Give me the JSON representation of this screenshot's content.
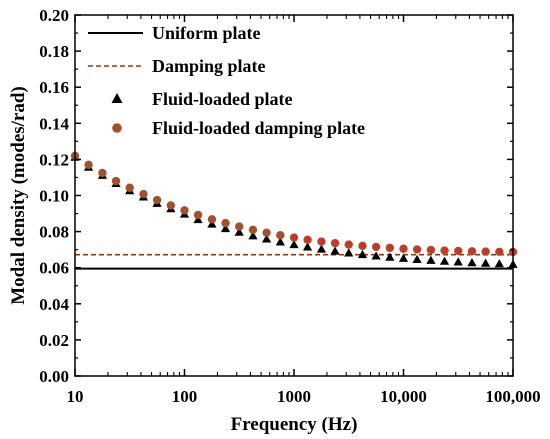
{
  "chart_data": {
    "type": "scatter",
    "xscale": "log",
    "xlim": [
      10,
      100000
    ],
    "ylim": [
      0.0,
      0.2
    ],
    "xlabel": "Frequency (Hz)",
    "ylabel": "Modal density (modes/rad)",
    "grid": false,
    "legend_position": "top-left",
    "x_ticks": [
      10,
      100,
      1000,
      10000,
      100000
    ],
    "x_tick_labels": [
      "10",
      "100",
      "1000",
      "10,000",
      "100,000"
    ],
    "y_ticks": [
      0.0,
      0.02,
      0.04,
      0.06,
      0.08,
      0.1,
      0.12,
      0.14,
      0.16,
      0.18,
      0.2
    ],
    "y_tick_labels": [
      "0.00",
      "0.02",
      "0.04",
      "0.06",
      "0.08",
      "0.10",
      "0.12",
      "0.14",
      "0.16",
      "0.18",
      "0.20"
    ],
    "series": [
      {
        "name": "Uniform plate",
        "style": "solid-line",
        "color": "#000000",
        "x": [
          10,
          100000
        ],
        "y": [
          0.0595,
          0.0595
        ]
      },
      {
        "name": "Damping plate",
        "style": "dashed-line",
        "color": "#8b3a0f",
        "x": [
          10,
          100000
        ],
        "y": [
          0.0672,
          0.0672
        ]
      },
      {
        "name": "Fluid-loaded plate",
        "style": "triangle-marker",
        "color": "#000000",
        "x": [
          10,
          13.3,
          17.8,
          23.7,
          31.6,
          42.2,
          56.2,
          75,
          100,
          133,
          178,
          237,
          316,
          422,
          562,
          750,
          1000,
          1330,
          1780,
          2370,
          3160,
          4220,
          5620,
          7500,
          10000,
          13300,
          17800,
          23700,
          31600,
          42200,
          56200,
          75000,
          100000
        ],
        "y": [
          0.121,
          0.1155,
          0.111,
          0.1065,
          0.1025,
          0.099,
          0.0955,
          0.0925,
          0.0895,
          0.0865,
          0.084,
          0.0815,
          0.0795,
          0.0775,
          0.0757,
          0.0741,
          0.0726,
          0.0713,
          0.0701,
          0.069,
          0.068,
          0.0671,
          0.0663,
          0.0656,
          0.065,
          0.0644,
          0.0639,
          0.0634,
          0.063,
          0.0626,
          0.0623,
          0.062,
          0.0617
        ]
      },
      {
        "name": "Fluid-loaded damping plate",
        "style": "circle-marker",
        "color": "#a0522d",
        "highlight_color": "#e8222a",
        "x": [
          10,
          13.3,
          17.8,
          23.7,
          31.6,
          42.2,
          56.2,
          75,
          100,
          133,
          178,
          237,
          316,
          422,
          562,
          750,
          1000,
          1330,
          1780,
          2370,
          3160,
          4220,
          5620,
          7500,
          10000,
          13300,
          17800,
          23700,
          31600,
          42200,
          56200,
          75000,
          100000
        ],
        "y": [
          0.122,
          0.117,
          0.1125,
          0.108,
          0.1043,
          0.1008,
          0.0975,
          0.0945,
          0.0918,
          0.0892,
          0.0868,
          0.0847,
          0.0828,
          0.081,
          0.0794,
          0.078,
          0.0767,
          0.0755,
          0.0745,
          0.0736,
          0.0728,
          0.0721,
          0.0715,
          0.071,
          0.0705,
          0.0701,
          0.0698,
          0.0695,
          0.0693,
          0.0691,
          0.0689,
          0.0688,
          0.0687
        ]
      }
    ]
  }
}
